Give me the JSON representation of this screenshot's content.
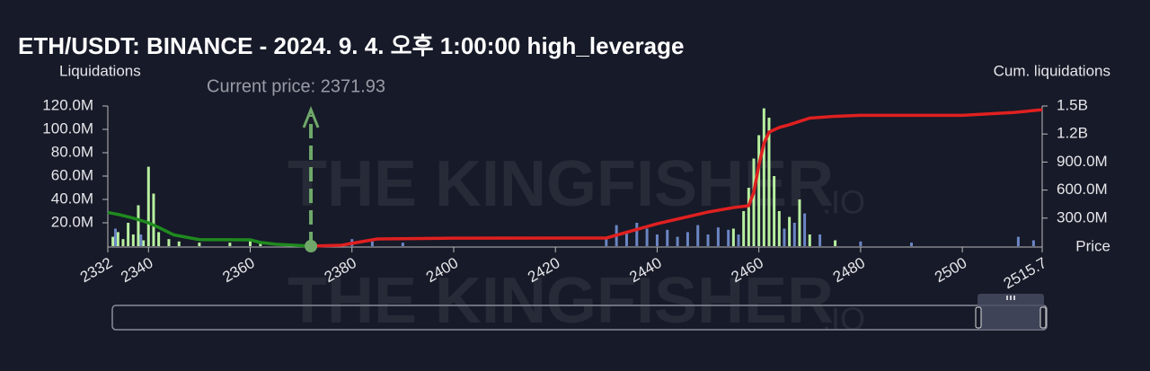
{
  "chart_data": {
    "type": "bar-line",
    "title": "ETH/USDT: BINANCE - 2024. 9. 4. 오후 1:00:00 high_leverage",
    "ylabel": "Liquidations",
    "y2label": "Cum. liquidations",
    "xlabel": "Price",
    "watermark": [
      "THE KINGFISHER",
      ".IO"
    ],
    "current_price": {
      "value": 2371.93,
      "label": "Current price: 2371.93"
    },
    "xlim": [
      2332,
      2515.7
    ],
    "xticks": [
      2332,
      2340,
      2360,
      2380,
      2400,
      2420,
      2440,
      2460,
      2480,
      2500,
      2515.7
    ],
    "ylim": [
      0,
      120000000
    ],
    "yticks": [
      {
        "value": 20000000,
        "label": "20.0M"
      },
      {
        "value": 40000000,
        "label": "40.0M"
      },
      {
        "value": 60000000,
        "label": "60.0M"
      },
      {
        "value": 80000000,
        "label": "80.0M"
      },
      {
        "value": 100000000,
        "label": "100.0M"
      },
      {
        "value": 120000000,
        "label": "120.0M"
      }
    ],
    "y2lim": [
      0,
      1500000000
    ],
    "y2ticks": [
      {
        "value": 300000000,
        "label": "300.0M"
      },
      {
        "value": 600000000,
        "label": "600.0M"
      },
      {
        "value": 900000000,
        "label": "900.0M"
      },
      {
        "value": 1200000000,
        "label": "1.2B"
      },
      {
        "value": 1500000000,
        "label": "1.5B"
      }
    ],
    "bars": [
      {
        "color": "#b8f0a0",
        "x": [
          2333,
          2334,
          2335,
          2336,
          2337,
          2338,
          2339,
          2340,
          2341,
          2342,
          2344,
          2346,
          2350,
          2356,
          2360,
          2362,
          2455,
          2457,
          2458,
          2459,
          2460,
          2461,
          2462,
          2463,
          2464,
          2466,
          2468,
          2470,
          2475
        ],
        "values": [
          8000000,
          12000000,
          6000000,
          20000000,
          10000000,
          35000000,
          5000000,
          68000000,
          45000000,
          12000000,
          6000000,
          4000000,
          3000000,
          3000000,
          5000000,
          3000000,
          15000000,
          30000000,
          50000000,
          75000000,
          95000000,
          118000000,
          110000000,
          60000000,
          30000000,
          25000000,
          40000000,
          10000000,
          5000000
        ]
      },
      {
        "color": "#6b86c4",
        "x": [
          2333.5,
          2338.5,
          2380,
          2384,
          2390,
          2430,
          2432,
          2434,
          2436,
          2438,
          2440,
          2442,
          2444,
          2446,
          2448,
          2450,
          2452,
          2454,
          2456,
          2465,
          2467,
          2469,
          2472,
          2480,
          2490,
          2511,
          2514
        ],
        "values": [
          15000000,
          10000000,
          6000000,
          4000000,
          3000000,
          8000000,
          18000000,
          12000000,
          20000000,
          15000000,
          10000000,
          14000000,
          8000000,
          12000000,
          18000000,
          10000000,
          16000000,
          14000000,
          10000000,
          15000000,
          20000000,
          28000000,
          10000000,
          4000000,
          3000000,
          8000000,
          5000000
        ]
      }
    ],
    "lines": [
      {
        "color": "#1f8a1f",
        "axis": "y2",
        "x": [
          2332,
          2334,
          2337,
          2340,
          2342,
          2345,
          2350,
          2360,
          2362,
          2365,
          2371.93
        ],
        "values": [
          360000000,
          340000000,
          300000000,
          250000000,
          200000000,
          120000000,
          70000000,
          67000000,
          40000000,
          20000000,
          0
        ]
      },
      {
        "color": "#e02020",
        "axis": "y2",
        "x": [
          2371.93,
          2378,
          2380,
          2385,
          2400,
          2430,
          2440,
          2450,
          2455,
          2458,
          2459,
          2460,
          2461,
          2462,
          2464,
          2466,
          2470,
          2475,
          2480,
          2500,
          2510,
          2515.7
        ],
        "values": [
          0,
          10000000,
          30000000,
          77000000,
          85000000,
          87000000,
          240000000,
          365000000,
          413000000,
          433000000,
          577000000,
          865000000,
          1100000000,
          1220000000,
          1270000000,
          1300000000,
          1370000000,
          1390000000,
          1400000000,
          1400000000,
          1430000000,
          1460000000
        ]
      }
    ]
  }
}
